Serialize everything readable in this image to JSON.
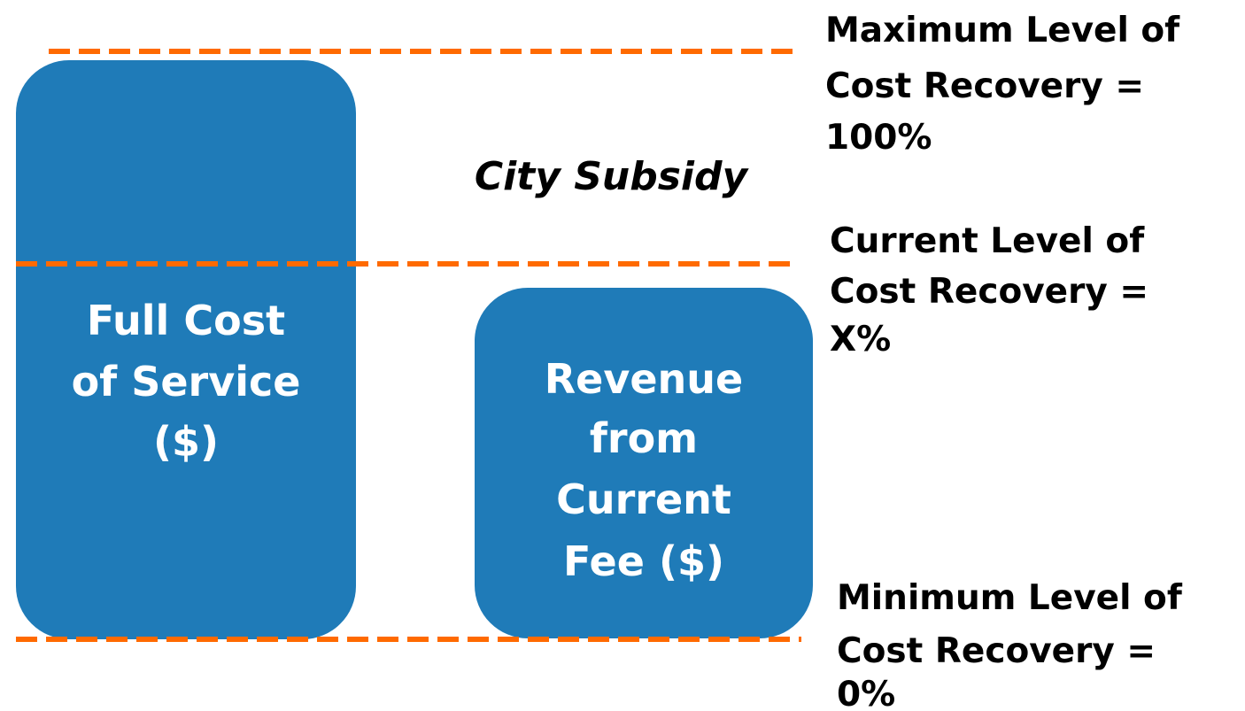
{
  "boxes": [
    {
      "lines": [
        "Full Cost",
        "of Service",
        "($)"
      ]
    },
    {
      "lines": [
        "Revenue",
        "from",
        "Current",
        "Fee ($)"
      ]
    }
  ],
  "subsidy_label": "City Subsidy",
  "levels": [
    {
      "lines": [
        "Maximum Level of",
        "Cost Recovery =",
        "100%"
      ]
    },
    {
      "lines": [
        "Current Level of",
        "Cost Recovery =",
        "X%"
      ]
    },
    {
      "lines": [
        "Minimum Level of",
        "Cost Recovery =",
        "0%"
      ]
    }
  ]
}
